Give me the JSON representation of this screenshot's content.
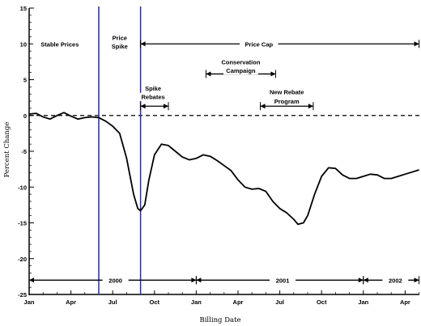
{
  "chart_data": {
    "type": "line",
    "xlabel": "Billing Date",
    "ylabel": "Percent Change",
    "ylim": [
      -25,
      15
    ],
    "yticks": [
      15,
      10,
      5,
      0,
      -5,
      -10,
      -15,
      -20,
      -25
    ],
    "xticks": [
      "Jan",
      "Apr",
      "Jul",
      "Oct",
      "Jan",
      "Apr",
      "Jul",
      "Oct",
      "Jan",
      "Apr"
    ],
    "xlim": [
      0,
      28
    ],
    "x_unit": "months since Jan 2000",
    "grid": false,
    "reference_line": 0,
    "vertical_lines": [
      5.0,
      8.0
    ],
    "series": [
      {
        "values": [
          [
            0,
            0.2
          ],
          [
            0.5,
            0.3
          ],
          [
            1,
            -0.2
          ],
          [
            1.5,
            -0.5
          ],
          [
            2,
            0.0
          ],
          [
            2.5,
            0.4
          ],
          [
            3,
            -0.1
          ],
          [
            3.5,
            -0.5
          ],
          [
            4,
            -0.3
          ],
          [
            4.5,
            -0.2
          ],
          [
            5,
            -0.3
          ],
          [
            5.5,
            -0.8
          ],
          [
            6,
            -1.5
          ],
          [
            6.5,
            -2.5
          ],
          [
            7,
            -6
          ],
          [
            7.5,
            -11
          ],
          [
            7.8,
            -13
          ],
          [
            8,
            -13.3
          ],
          [
            8.3,
            -12.5
          ],
          [
            8.6,
            -9
          ],
          [
            9,
            -5.5
          ],
          [
            9.5,
            -4
          ],
          [
            10,
            -4.2
          ],
          [
            10.5,
            -5
          ],
          [
            11,
            -5.8
          ],
          [
            11.5,
            -6.2
          ],
          [
            12,
            -6
          ],
          [
            12.5,
            -5.5
          ],
          [
            13,
            -5.7
          ],
          [
            13.5,
            -6.3
          ],
          [
            14,
            -7
          ],
          [
            14.5,
            -7.7
          ],
          [
            15,
            -9
          ],
          [
            15.5,
            -10
          ],
          [
            16,
            -10.3
          ],
          [
            16.5,
            -10.2
          ],
          [
            17,
            -10.6
          ],
          [
            17.5,
            -12
          ],
          [
            18,
            -13
          ],
          [
            18.5,
            -13.6
          ],
          [
            19,
            -14.5
          ],
          [
            19.3,
            -15.2
          ],
          [
            19.7,
            -15
          ],
          [
            20,
            -14
          ],
          [
            20.5,
            -11
          ],
          [
            21,
            -8.5
          ],
          [
            21.5,
            -7.3
          ],
          [
            22,
            -7.4
          ],
          [
            22.5,
            -8.3
          ],
          [
            23,
            -8.8
          ],
          [
            23.5,
            -8.8
          ],
          [
            24,
            -8.5
          ],
          [
            24.5,
            -8.2
          ],
          [
            25,
            -8.3
          ],
          [
            25.5,
            -8.8
          ],
          [
            26,
            -8.8
          ],
          [
            26.5,
            -8.5
          ],
          [
            27,
            -8.2
          ],
          [
            27.5,
            -7.9
          ],
          [
            28,
            -7.6
          ]
        ]
      }
    ],
    "annotations": [
      {
        "text": "Stable Prices",
        "x": 2.2,
        "y": 10
      },
      {
        "text": "Price",
        "x": 6.5,
        "y": 10.9
      },
      {
        "text": "Spike",
        "x": 6.5,
        "y": 9.7
      },
      {
        "text": "Price Cap",
        "x": 16.5,
        "y": 10
      },
      {
        "text": "Conservation",
        "x": 15.2,
        "y": 7.5
      },
      {
        "text": "Campaign",
        "x": 15.2,
        "y": 6.3
      },
      {
        "text": "Spike",
        "x": 8.9,
        "y": 3.8
      },
      {
        "text": "Rebates",
        "x": 8.9,
        "y": 2.6
      },
      {
        "text": "New Rebate",
        "x": 18.5,
        "y": 3.3
      },
      {
        "text": "Program",
        "x": 18.5,
        "y": 2.0
      }
    ],
    "arrows": [
      {
        "from": 8.0,
        "to": 28,
        "y": 10
      },
      {
        "from": 12.7,
        "to": 17.7,
        "y": 5.8
      },
      {
        "from": 8.0,
        "to": 10.0,
        "y": 1.3
      },
      {
        "from": 16.6,
        "to": 20.4,
        "y": 1.3
      },
      {
        "from": 0,
        "to": 12,
        "y": -23
      },
      {
        "from": 12,
        "to": 24,
        "y": -23
      },
      {
        "from": 24,
        "to": 28,
        "y": -23
      }
    ],
    "year_labels": [
      {
        "text": "2000",
        "x": 6.2
      },
      {
        "text": "2001",
        "x": 18.2
      },
      {
        "text": "2002",
        "x": 26.3
      }
    ]
  }
}
